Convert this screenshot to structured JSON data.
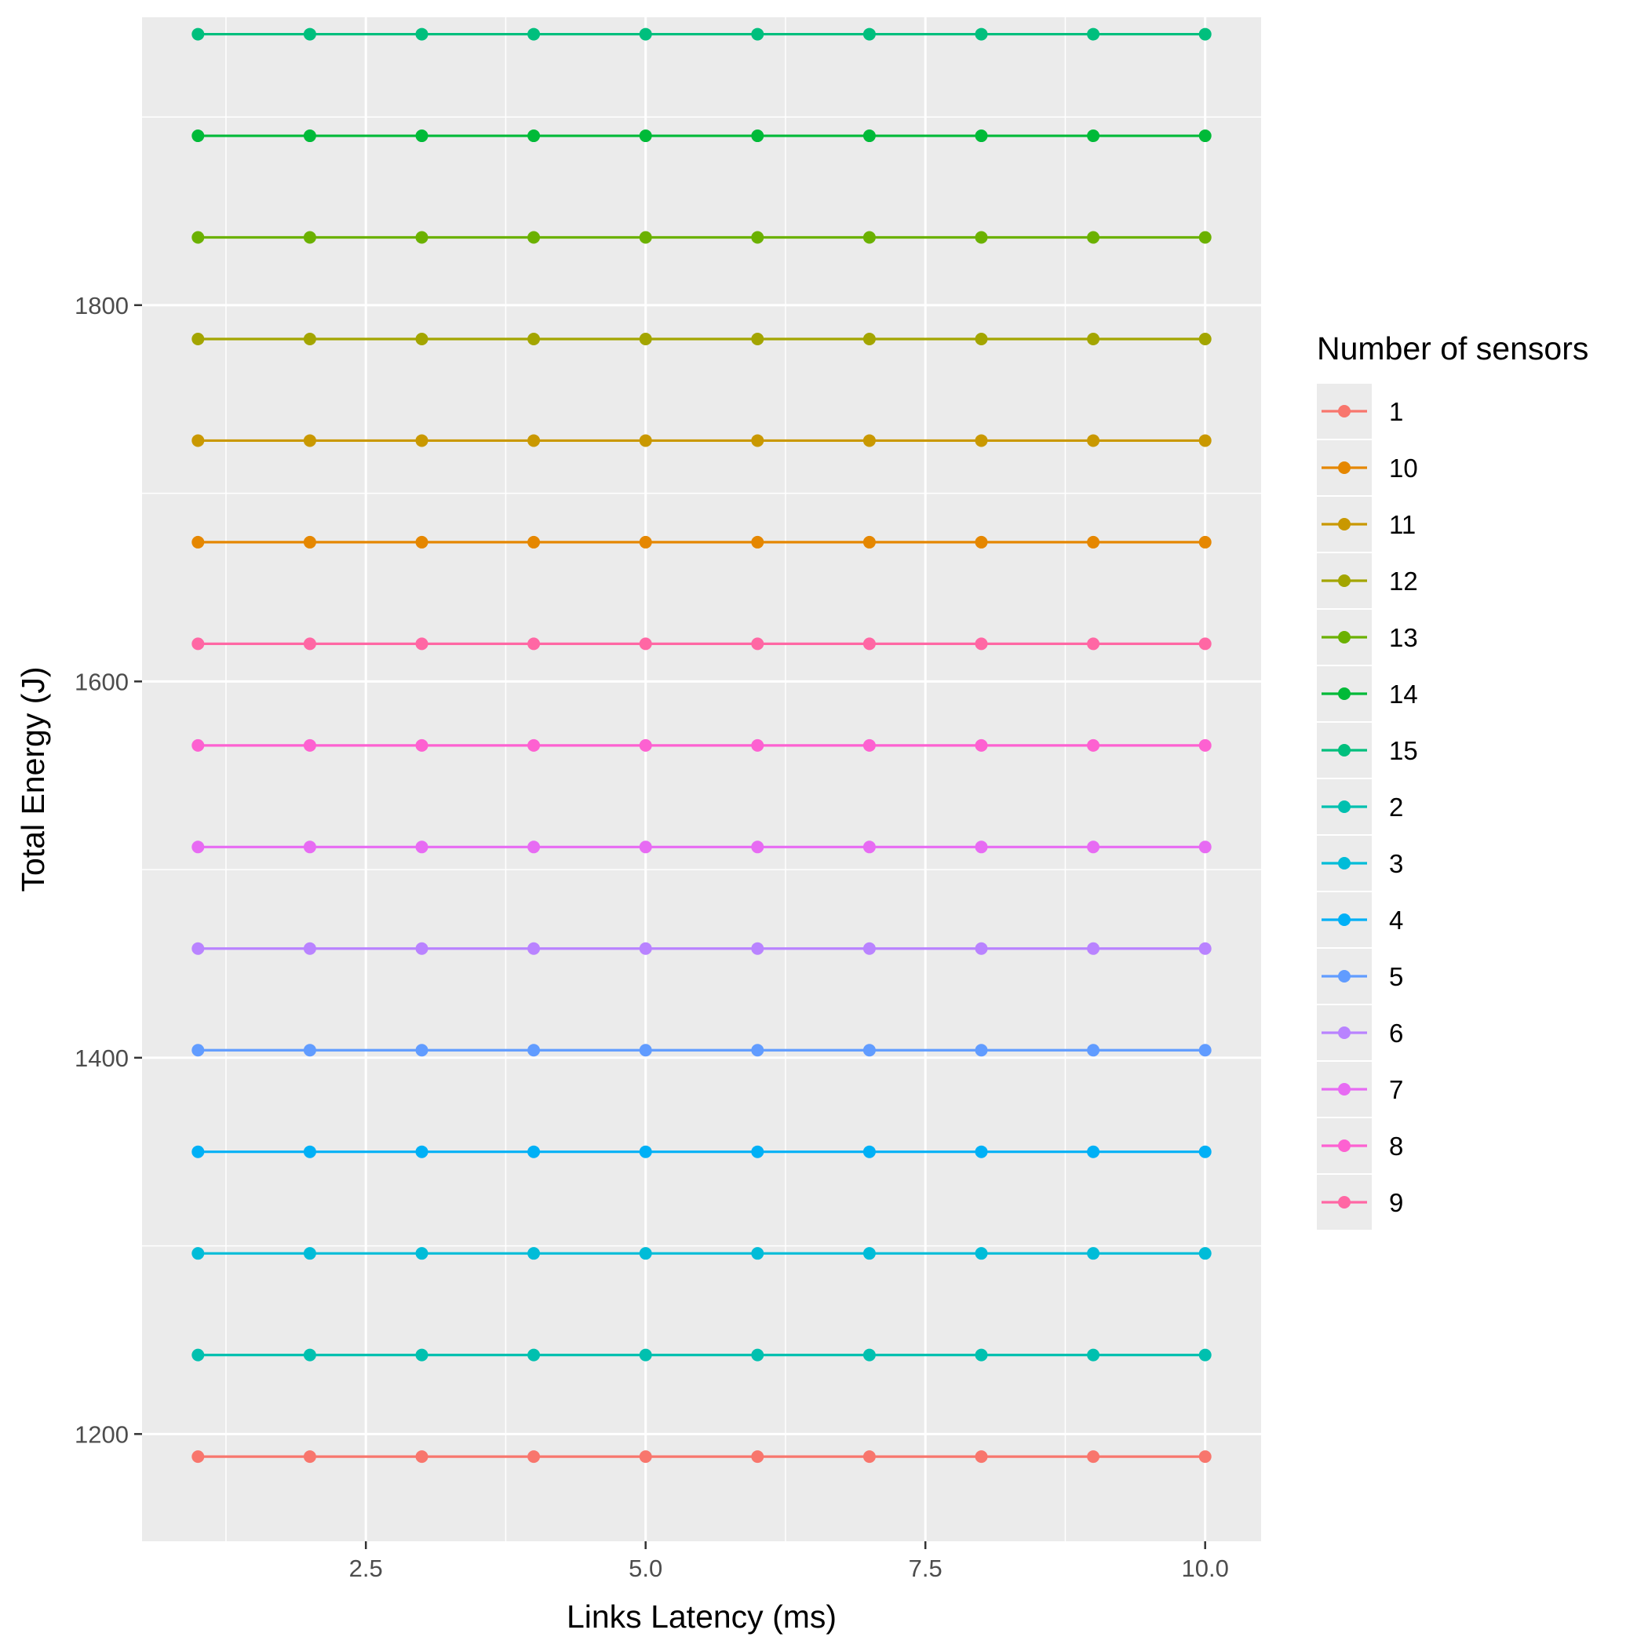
{
  "chart_data": {
    "type": "line",
    "title": "",
    "xlabel": "Links Latency (ms)",
    "ylabel": "Total Energy (J)",
    "xlim": [
      0.5,
      10.5
    ],
    "ylim": [
      1143,
      1953
    ],
    "x_ticks": [
      2.5,
      5.0,
      7.5,
      10.0
    ],
    "x_tick_labels": [
      "2.5",
      "5.0",
      "7.5",
      "10.0"
    ],
    "y_ticks": [
      1200,
      1400,
      1600,
      1800
    ],
    "y_tick_labels": [
      "1200",
      "1400",
      "1600",
      "1800"
    ],
    "grid": true,
    "legend": {
      "title": "Number of sensors",
      "position": "right"
    },
    "x": [
      1,
      2,
      3,
      4,
      5,
      6,
      7,
      8,
      9,
      10
    ],
    "series": [
      {
        "name": "1",
        "color": "#F8766D",
        "values": [
          1188,
          1188,
          1188,
          1188,
          1188,
          1188,
          1188,
          1188,
          1188,
          1188
        ]
      },
      {
        "name": "10",
        "color": "#E58700",
        "values": [
          1674,
          1674,
          1674,
          1674,
          1674,
          1674,
          1674,
          1674,
          1674,
          1674
        ]
      },
      {
        "name": "11",
        "color": "#C99800",
        "values": [
          1728,
          1728,
          1728,
          1728,
          1728,
          1728,
          1728,
          1728,
          1728,
          1728
        ]
      },
      {
        "name": "12",
        "color": "#A3A500",
        "values": [
          1782,
          1782,
          1782,
          1782,
          1782,
          1782,
          1782,
          1782,
          1782,
          1782
        ]
      },
      {
        "name": "13",
        "color": "#6BB100",
        "values": [
          1836,
          1836,
          1836,
          1836,
          1836,
          1836,
          1836,
          1836,
          1836,
          1836
        ]
      },
      {
        "name": "14",
        "color": "#00BA38",
        "values": [
          1890,
          1890,
          1890,
          1890,
          1890,
          1890,
          1890,
          1890,
          1890,
          1890
        ]
      },
      {
        "name": "15",
        "color": "#00BF7D",
        "values": [
          1944,
          1944,
          1944,
          1944,
          1944,
          1944,
          1944,
          1944,
          1944,
          1944
        ]
      },
      {
        "name": "2",
        "color": "#00C0AF",
        "values": [
          1242,
          1242,
          1242,
          1242,
          1242,
          1242,
          1242,
          1242,
          1242,
          1242
        ]
      },
      {
        "name": "3",
        "color": "#00BCD8",
        "values": [
          1296,
          1296,
          1296,
          1296,
          1296,
          1296,
          1296,
          1296,
          1296,
          1296
        ]
      },
      {
        "name": "4",
        "color": "#00B0F6",
        "values": [
          1350,
          1350,
          1350,
          1350,
          1350,
          1350,
          1350,
          1350,
          1350,
          1350
        ]
      },
      {
        "name": "5",
        "color": "#619CFF",
        "values": [
          1404,
          1404,
          1404,
          1404,
          1404,
          1404,
          1404,
          1404,
          1404,
          1404
        ]
      },
      {
        "name": "6",
        "color": "#B983FF",
        "values": [
          1458,
          1458,
          1458,
          1458,
          1458,
          1458,
          1458,
          1458,
          1458,
          1458
        ]
      },
      {
        "name": "7",
        "color": "#E76BF3",
        "values": [
          1512,
          1512,
          1512,
          1512,
          1512,
          1512,
          1512,
          1512,
          1512,
          1512
        ]
      },
      {
        "name": "8",
        "color": "#FD61D1",
        "values": [
          1566,
          1566,
          1566,
          1566,
          1566,
          1566,
          1566,
          1566,
          1566,
          1566
        ]
      },
      {
        "name": "9",
        "color": "#FF67A4",
        "values": [
          1620,
          1620,
          1620,
          1620,
          1620,
          1620,
          1620,
          1620,
          1620,
          1620
        ]
      }
    ]
  }
}
